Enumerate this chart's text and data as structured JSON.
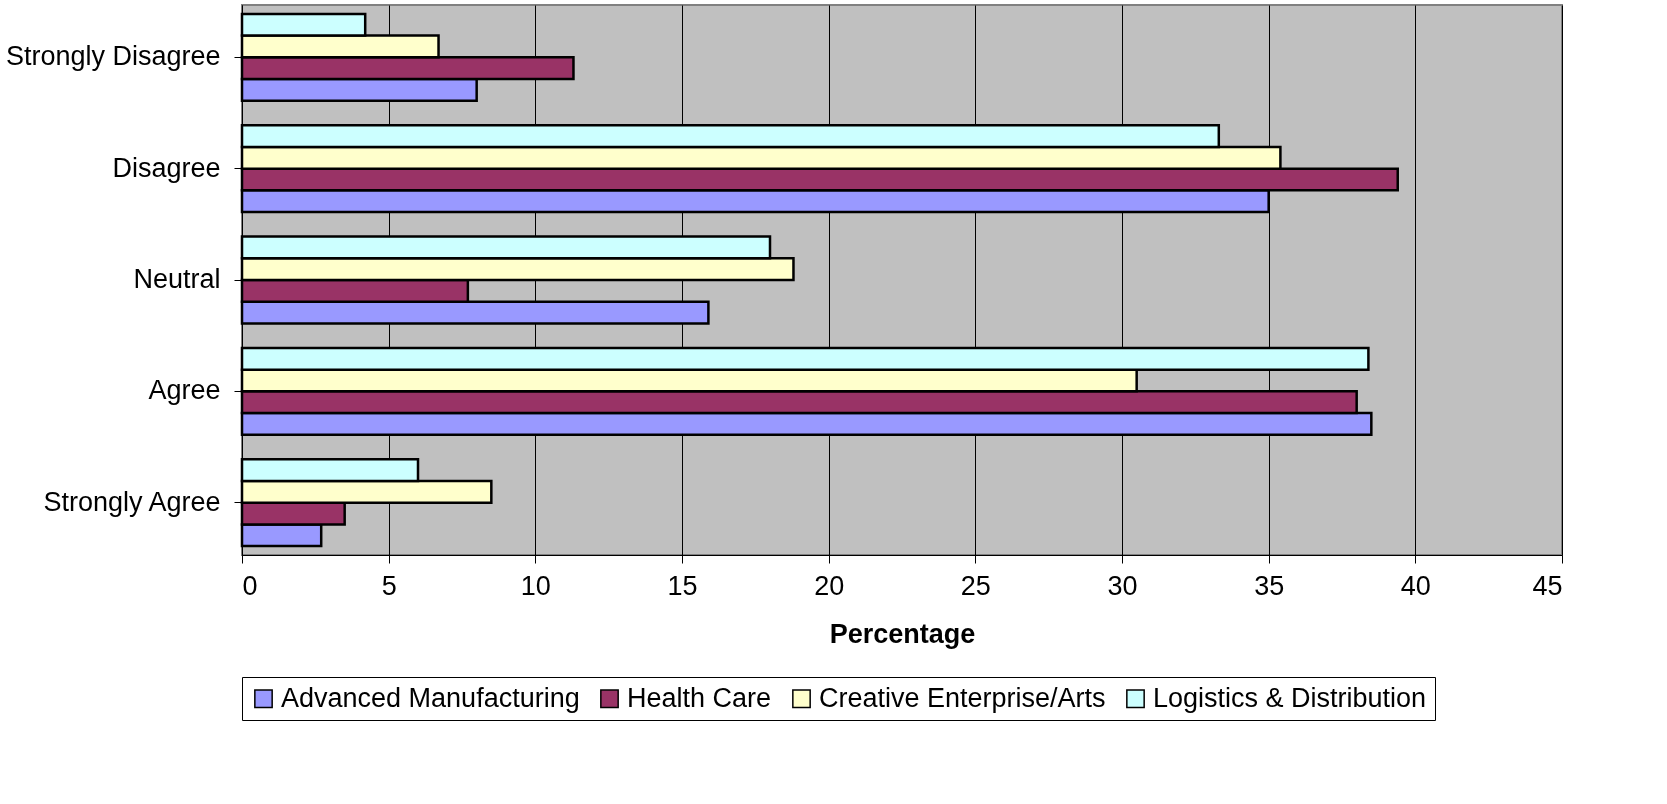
{
  "chart_data": {
    "type": "bar",
    "orientation": "horizontal",
    "xlabel": "Percentage",
    "categories": [
      "Strongly Disagree",
      "Disagree",
      "Neutral",
      "Agree",
      "Strongly Agree"
    ],
    "series": [
      {
        "name": "Advanced Manufacturing",
        "color": "#9999ff",
        "values": [
          8.0,
          35.0,
          15.9,
          38.5,
          2.7
        ]
      },
      {
        "name": "Health Care",
        "color": "#993366",
        "values": [
          11.3,
          39.4,
          7.7,
          38.0,
          3.5
        ]
      },
      {
        "name": "Creative Enterprise/Arts",
        "color": "#ffffcc",
        "values": [
          6.7,
          35.4,
          18.8,
          30.5,
          8.5
        ]
      },
      {
        "name": "Logistics & Distribution",
        "color": "#ccffff",
        "values": [
          4.2,
          33.3,
          18.0,
          38.4,
          6.0
        ]
      }
    ],
    "xlim": [
      0,
      45
    ],
    "xticks": [
      0,
      5,
      10,
      15,
      20,
      25,
      30,
      35,
      40,
      45
    ],
    "grid": "x",
    "legend": "bottom"
  }
}
